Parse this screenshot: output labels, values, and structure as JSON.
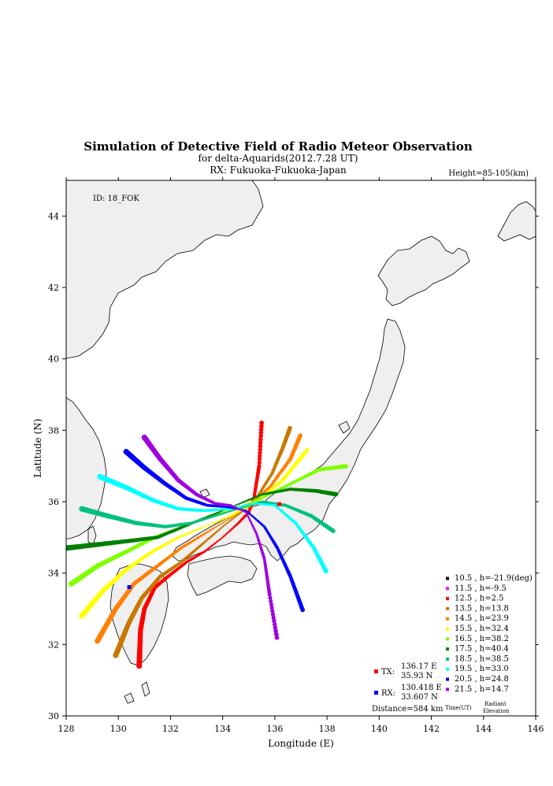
{
  "chart_data": {
    "type": "scatter",
    "title": "Simulation of Detective Field of Radio Meteor Observation",
    "subtitle": "for delta-Aquarids(2012.7.28 UT)",
    "rx_line": "RX: Fukuoka-Fukuoka-Japan",
    "height_label": "Height=85-105(km)",
    "id_label": "ID: 18_FOK",
    "xlabel": "Longitude (E)",
    "ylabel": "Latitude (N)",
    "xlim": [
      128,
      146
    ],
    "ylim": [
      30,
      45
    ],
    "xticks": [
      "128",
      "130",
      "132",
      "134",
      "136",
      "138",
      "140",
      "142",
      "144",
      "146"
    ],
    "yticks": [
      "30",
      "32",
      "34",
      "36",
      "38",
      "40",
      "42",
      "44"
    ],
    "grid": false,
    "legend_position": "bottom-right",
    "legend_footer": {
      "time": "Time(UT)",
      "elev_1": "Radiant",
      "elev_2": "Elevation"
    },
    "tx": {
      "label": "TX:",
      "lon_text": "136.17 E",
      "lat_text": "35.93 N",
      "lon": 136.17,
      "lat": 35.93,
      "color": "#ff0000"
    },
    "rx": {
      "label": "RX:",
      "lon_text": "130.418 E",
      "lat_text": "33.607 N",
      "lon": 130.418,
      "lat": 33.607,
      "color": "#0000ff"
    },
    "distance": "Distance=584 km",
    "series": [
      {
        "name": "10.5 ,  h=-21.9(deg)",
        "color": "#000000",
        "points": []
      },
      {
        "name": "11.5 ,  h=-9.5",
        "color": "#ff00ff",
        "points": []
      },
      {
        "name": "12.5 ,  h=2.5",
        "color": "#ff0000",
        "points": [
          [
            130.8,
            31.4
          ],
          [
            130.85,
            32.4
          ],
          [
            131.0,
            33.0
          ],
          [
            131.4,
            33.6
          ],
          [
            131.9,
            33.9
          ],
          [
            132.6,
            34.3
          ],
          [
            133.3,
            34.6
          ],
          [
            134.0,
            35.0
          ],
          [
            134.6,
            35.4
          ],
          [
            135.0,
            35.7
          ],
          [
            135.2,
            36.1
          ],
          [
            135.4,
            37.0
          ],
          [
            135.5,
            38.3
          ]
        ]
      },
      {
        "name": "13.5 ,  h=13.8",
        "color": "#c87800",
        "points": [
          [
            129.9,
            31.7
          ],
          [
            130.4,
            32.6
          ],
          [
            130.9,
            33.3
          ],
          [
            131.6,
            33.9
          ],
          [
            132.4,
            34.3
          ],
          [
            133.2,
            34.8
          ],
          [
            134.0,
            35.3
          ],
          [
            134.7,
            35.7
          ],
          [
            135.3,
            36.1
          ],
          [
            135.9,
            36.8
          ],
          [
            136.3,
            37.5
          ],
          [
            136.6,
            38.1
          ]
        ]
      },
      {
        "name": "14.5 ,  h=23.9",
        "color": "#ff8000",
        "points": [
          [
            129.2,
            32.1
          ],
          [
            129.9,
            33.0
          ],
          [
            130.6,
            33.7
          ],
          [
            131.5,
            34.2
          ],
          [
            132.4,
            34.7
          ],
          [
            133.3,
            35.1
          ],
          [
            134.2,
            35.5
          ],
          [
            135.0,
            35.9
          ],
          [
            135.8,
            36.4
          ],
          [
            136.6,
            37.2
          ],
          [
            137.0,
            37.9
          ]
        ]
      },
      {
        "name": "15.5 ,  h=32.4",
        "color": "#ffff00",
        "points": [
          [
            128.6,
            32.8
          ],
          [
            129.4,
            33.5
          ],
          [
            130.3,
            34.1
          ],
          [
            131.3,
            34.6
          ],
          [
            132.3,
            35.0
          ],
          [
            133.3,
            35.3
          ],
          [
            134.3,
            35.6
          ],
          [
            135.3,
            36.0
          ],
          [
            136.3,
            36.6
          ],
          [
            137.3,
            37.5
          ]
        ]
      },
      {
        "name": "16.5 ,  h=38.2",
        "color": "#80ff00",
        "points": [
          [
            128.2,
            33.7
          ],
          [
            129.2,
            34.2
          ],
          [
            130.3,
            34.6
          ],
          [
            131.4,
            35.0
          ],
          [
            132.5,
            35.3
          ],
          [
            133.5,
            35.6
          ],
          [
            134.5,
            35.8
          ],
          [
            135.5,
            36.1
          ],
          [
            136.6,
            36.5
          ],
          [
            137.7,
            36.9
          ],
          [
            138.8,
            37.0
          ]
        ]
      },
      {
        "name": "17.5 ,  h=40.4",
        "color": "#008000",
        "points": [
          [
            128.0,
            34.7
          ],
          [
            129.2,
            34.8
          ],
          [
            130.4,
            34.9
          ],
          [
            131.5,
            35.0
          ],
          [
            132.5,
            35.3
          ],
          [
            133.5,
            35.6
          ],
          [
            134.5,
            35.9
          ],
          [
            135.5,
            36.2
          ],
          [
            136.6,
            36.35
          ],
          [
            137.6,
            36.3
          ],
          [
            138.4,
            36.2
          ]
        ]
      },
      {
        "name": "18.5 ,  h=38.5",
        "color": "#00c080",
        "points": [
          [
            128.6,
            35.8
          ],
          [
            129.6,
            35.6
          ],
          [
            130.7,
            35.4
          ],
          [
            131.8,
            35.3
          ],
          [
            132.8,
            35.4
          ],
          [
            133.7,
            35.6
          ],
          [
            134.6,
            35.8
          ],
          [
            135.5,
            36.0
          ],
          [
            136.4,
            35.9
          ],
          [
            137.4,
            35.6
          ],
          [
            138.3,
            35.15
          ]
        ]
      },
      {
        "name": "19.5 ,  h=33.0",
        "color": "#00ffff",
        "points": [
          [
            129.3,
            36.7
          ],
          [
            130.3,
            36.4
          ],
          [
            131.3,
            36.05
          ],
          [
            132.3,
            35.8
          ],
          [
            133.3,
            35.75
          ],
          [
            134.3,
            35.8
          ],
          [
            135.2,
            35.95
          ],
          [
            136.0,
            35.9
          ],
          [
            136.8,
            35.4
          ],
          [
            137.5,
            34.7
          ],
          [
            138.0,
            34.0
          ]
        ]
      },
      {
        "name": "20.5 ,  h=24.8",
        "color": "#0000ff",
        "points": [
          [
            130.3,
            37.4
          ],
          [
            131.0,
            36.95
          ],
          [
            131.8,
            36.5
          ],
          [
            132.6,
            36.1
          ],
          [
            133.4,
            35.9
          ],
          [
            134.2,
            35.85
          ],
          [
            134.9,
            35.75
          ],
          [
            135.6,
            35.3
          ],
          [
            136.1,
            34.7
          ],
          [
            136.6,
            33.9
          ],
          [
            137.1,
            32.9
          ]
        ]
      },
      {
        "name": "21.5 ,  h=14.7",
        "color": "#a000e0",
        "points": [
          [
            131.0,
            37.8
          ],
          [
            131.6,
            37.2
          ],
          [
            132.3,
            36.6
          ],
          [
            133.0,
            36.2
          ],
          [
            133.7,
            35.95
          ],
          [
            134.3,
            35.9
          ],
          [
            134.9,
            35.7
          ],
          [
            135.3,
            35.1
          ],
          [
            135.6,
            34.4
          ],
          [
            135.8,
            33.4
          ],
          [
            136.1,
            32.1
          ]
        ]
      }
    ]
  }
}
